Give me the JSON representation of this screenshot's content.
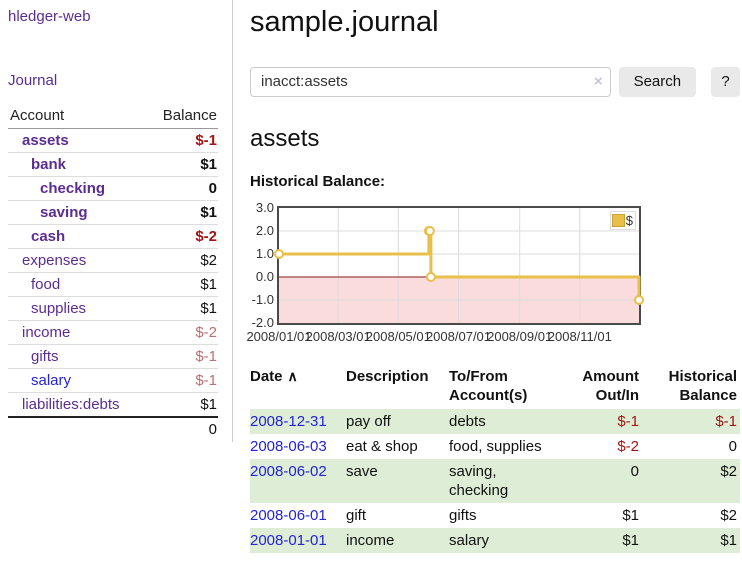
{
  "app": {
    "brand": "hledger-web"
  },
  "sidebar": {
    "nav_journal": "Journal",
    "accounts": {
      "col_account": "Account",
      "col_balance": "Balance",
      "rows": [
        {
          "name": "assets",
          "depth": 1,
          "bold": true,
          "name_style": "purple",
          "balance": "$-1",
          "balance_style": "negative"
        },
        {
          "name": "bank",
          "depth": 2,
          "bold": true,
          "name_style": "purple",
          "balance": "$1",
          "balance_style": "normal"
        },
        {
          "name": "checking",
          "depth": 3,
          "bold": true,
          "name_style": "purple",
          "balance": "0",
          "balance_style": "normal"
        },
        {
          "name": "saving",
          "depth": 3,
          "bold": true,
          "name_style": "purple",
          "balance": "$1",
          "balance_style": "normal"
        },
        {
          "name": "cash",
          "depth": 2,
          "bold": true,
          "name_style": "purple",
          "balance": "$-2",
          "balance_style": "negative"
        },
        {
          "name": "expenses",
          "depth": 1,
          "bold": false,
          "name_style": "purple",
          "balance": "$2",
          "balance_style": "normal"
        },
        {
          "name": "food",
          "depth": 2,
          "bold": false,
          "name_style": "purple",
          "balance": "$1",
          "balance_style": "normal"
        },
        {
          "name": "supplies",
          "depth": 2,
          "bold": false,
          "name_style": "purple",
          "balance": "$1",
          "balance_style": "normal"
        },
        {
          "name": "income",
          "depth": 1,
          "bold": false,
          "name_style": "purple",
          "balance": "$-2",
          "balance_style": "negative-dim"
        },
        {
          "name": "gifts",
          "depth": 2,
          "bold": false,
          "name_style": "purple",
          "balance": "$-1",
          "balance_style": "negative-dim"
        },
        {
          "name": "salary",
          "depth": 2,
          "bold": false,
          "name_style": "blue",
          "balance": "$-1",
          "balance_style": "negative-dim"
        },
        {
          "name": "liabilities:debts",
          "depth": 1,
          "bold": false,
          "name_style": "purple",
          "balance": "$1",
          "balance_style": "normal"
        }
      ],
      "total_balance": "0"
    }
  },
  "header": {
    "title": "sample.journal"
  },
  "search": {
    "value": "inacct:assets",
    "clear_icon": "×",
    "search_button": "Search",
    "help_button": "?"
  },
  "account_view": {
    "heading": "assets",
    "chart_title": "Historical Balance:"
  },
  "chart_data": {
    "type": "line",
    "title": "Historical Balance",
    "series": [
      {
        "name": "$",
        "step": true,
        "color": "#e9bf4b",
        "points": [
          {
            "date": "2008-01-01",
            "day": 0,
            "value": 1
          },
          {
            "date": "2008-06-01",
            "day": 152,
            "value": 2
          },
          {
            "date": "2008-06-02",
            "day": 153,
            "value": 2
          },
          {
            "date": "2008-06-03",
            "day": 154,
            "value": 0
          },
          {
            "date": "2008-12-31",
            "day": 365,
            "value": -1
          }
        ]
      }
    ],
    "x_ticks": [
      {
        "label": "2008/01/01",
        "day": 0
      },
      {
        "label": "2008/03/01",
        "day": 60
      },
      {
        "label": "2008/05/01",
        "day": 121
      },
      {
        "label": "2008/07/01",
        "day": 182
      },
      {
        "label": "2008/09/01",
        "day": 244
      },
      {
        "label": "2008/11/01",
        "day": 305
      }
    ],
    "y_ticks": [
      3.0,
      2.0,
      1.0,
      0.0,
      -1.0,
      -2.0
    ],
    "xlim_days": [
      0,
      365
    ],
    "ylim": [
      -2,
      3
    ],
    "grid": true,
    "legend_label": "$",
    "legend_position": "top-right",
    "negative_region_fill": "#fadcdc",
    "zero_line_color": "#8b1a1a",
    "grid_color": "#dcdcdc"
  },
  "register": {
    "sort_column": "Date",
    "sort_icon": "∧",
    "columns": [
      {
        "label_lines": [
          "Date"
        ],
        "align": "left"
      },
      {
        "label_lines": [
          "Description"
        ],
        "align": "left"
      },
      {
        "label_lines": [
          "To/From",
          "Account(s)"
        ],
        "align": "left"
      },
      {
        "label_lines": [
          "Amount",
          "Out/In"
        ],
        "align": "right"
      },
      {
        "label_lines": [
          "Historical",
          "Balance"
        ],
        "align": "right"
      }
    ],
    "rows": [
      {
        "date": "2008-12-31",
        "description": "pay off",
        "accounts_lines": [
          "debts"
        ],
        "amount": "$-1",
        "amount_negative": true,
        "balance": "$-1",
        "balance_negative": true,
        "shaded": true
      },
      {
        "date": "2008-06-03",
        "description": "eat & shop",
        "accounts_lines": [
          "food, supplies"
        ],
        "amount": "$-2",
        "amount_negative": true,
        "balance": "0",
        "balance_negative": false,
        "shaded": false
      },
      {
        "date": "2008-06-02",
        "description": "save",
        "accounts_lines": [
          "saving,",
          "checking"
        ],
        "amount": "0",
        "amount_negative": false,
        "balance": "$2",
        "balance_negative": false,
        "shaded": true
      },
      {
        "date": "2008-06-01",
        "description": "gift",
        "accounts_lines": [
          "gifts"
        ],
        "amount": "$1",
        "amount_negative": false,
        "balance": "$2",
        "balance_negative": false,
        "shaded": false
      },
      {
        "date": "2008-01-01",
        "description": "income",
        "accounts_lines": [
          "salary"
        ],
        "amount": "$1",
        "amount_negative": false,
        "balance": "$1",
        "balance_negative": false,
        "shaded": true
      }
    ]
  }
}
